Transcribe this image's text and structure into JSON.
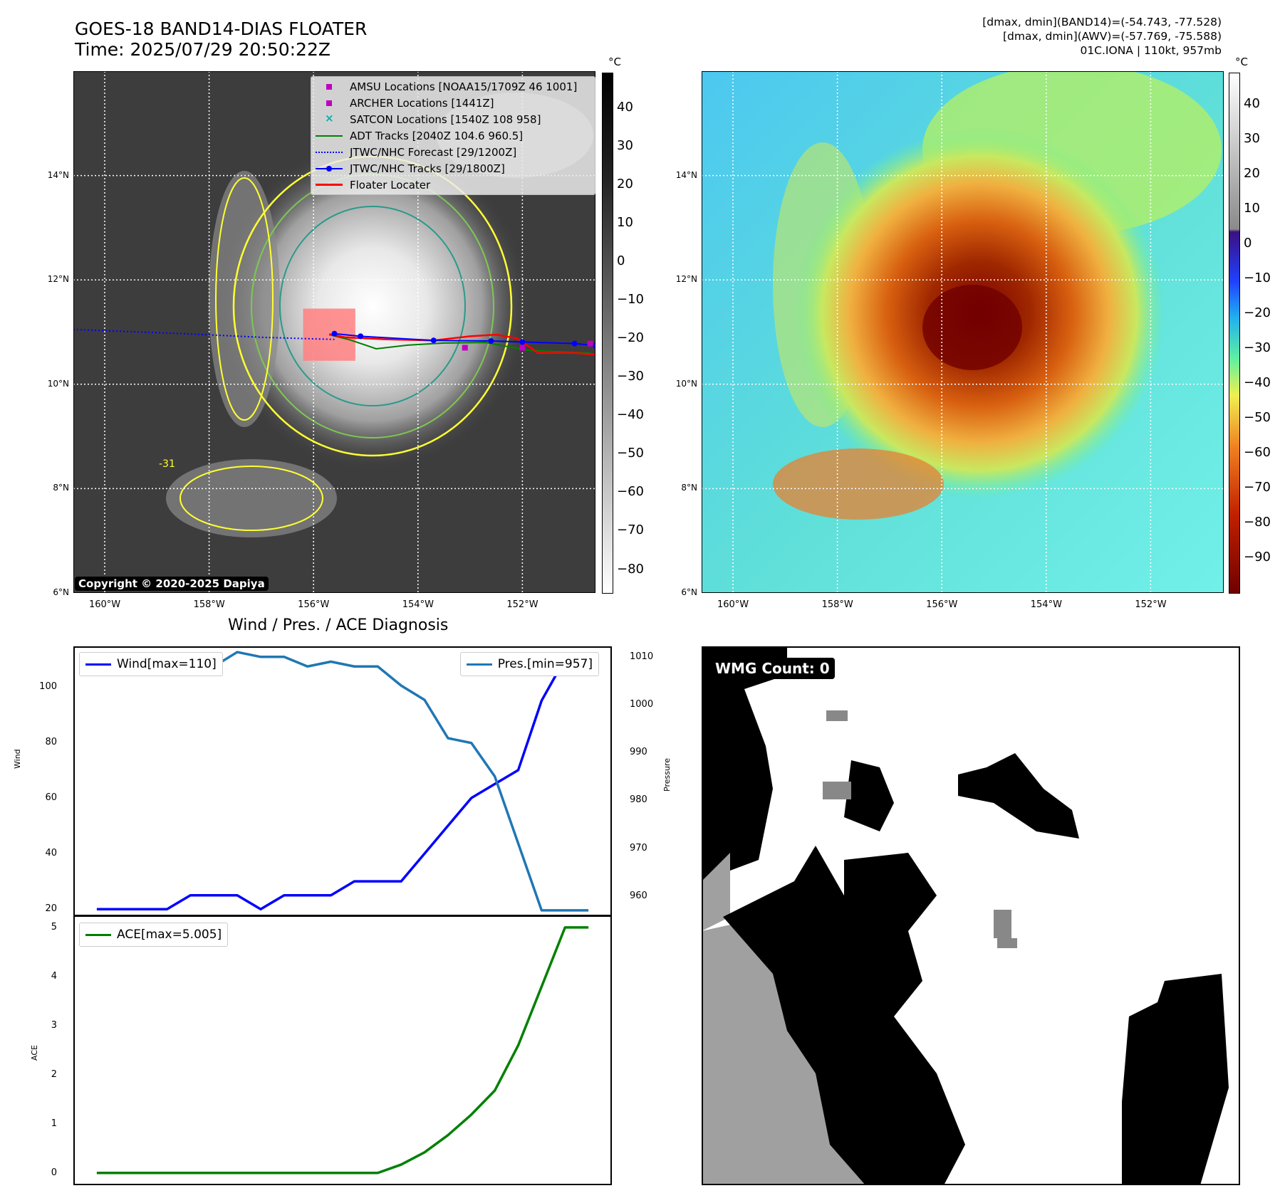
{
  "header": {
    "title_line1": "GOES-18 BAND14-DIAS FLOATER",
    "title_line2": "Time: 2025/07/29 20:50:22Z",
    "info_line1": "[dmax, dmin](BAND14)=(-54.743, -77.528)",
    "info_line2": "[dmax, dmin](AWV)=(-57.769, -75.588)",
    "info_line3": "01C.IONA | 110kt, 957mb"
  },
  "map_axes": {
    "lon_ticks": [
      "160°W",
      "158°W",
      "156°W",
      "154°W",
      "152°W"
    ],
    "lat_ticks": [
      "14°N",
      "12°N",
      "10°N",
      "8°N",
      "6°N"
    ],
    "lon_range": [
      -160.6,
      -150.6
    ],
    "lat_range": [
      6.0,
      16.0
    ]
  },
  "ir_panel": {
    "colorbar_unit": "°C",
    "colorbar_ticks": [
      "40",
      "30",
      "20",
      "10",
      "0",
      "−10",
      "−20",
      "−30",
      "−40",
      "−50",
      "−60",
      "−70",
      "−80"
    ],
    "contour_label": "-31",
    "copyright": "Copyright © 2020-2025 Dapiya",
    "legend": [
      {
        "label": "AMSU Locations [NOAA15/1709Z 46 1001]",
        "marker": "square",
        "color": "#c000c0"
      },
      {
        "label": "ARCHER Locations [1441Z]",
        "marker": "square",
        "color": "#c000c0"
      },
      {
        "label": "SATCON Locations [1540Z 108 958]",
        "marker": "x",
        "color": "#00b0b0"
      },
      {
        "label": "ADT Tracks [2040Z 104.6 960.5]",
        "marker": "line",
        "color": "#008000"
      },
      {
        "label": "JTWC/NHC Forecast [29/1200Z]",
        "marker": "dotted",
        "color": "#0000ff"
      },
      {
        "label": "JTWC/NHC Tracks [29/1800Z]",
        "marker": "line-dot",
        "color": "#0000ff"
      },
      {
        "label": "Floater Locater",
        "marker": "line",
        "color": "#ff0000"
      }
    ],
    "forecast_track": [
      [
        -160.6,
        11.05
      ],
      [
        -158.5,
        10.97
      ],
      [
        -157.0,
        10.9
      ],
      [
        -156.0,
        10.87
      ],
      [
        -155.6,
        10.86
      ]
    ],
    "jtwc_track": [
      [
        -150.6,
        10.74
      ],
      [
        -151.0,
        10.78
      ],
      [
        -152.0,
        10.81
      ],
      [
        -152.6,
        10.83
      ],
      [
        -153.7,
        10.84
      ],
      [
        -155.1,
        10.92
      ],
      [
        -155.6,
        10.97
      ]
    ],
    "adt_track": [
      [
        -150.7,
        10.6
      ],
      [
        -151.2,
        10.62
      ],
      [
        -151.9,
        10.65
      ],
      [
        -152.7,
        10.8
      ],
      [
        -153.5,
        10.79
      ],
      [
        -154.2,
        10.75
      ],
      [
        -154.8,
        10.68
      ],
      [
        -155.3,
        10.85
      ],
      [
        -155.7,
        10.95
      ]
    ],
    "floater_track": [
      [
        -150.6,
        10.57
      ],
      [
        -151.0,
        10.6
      ],
      [
        -151.7,
        10.6
      ],
      [
        -152.1,
        10.88
      ],
      [
        -152.5,
        10.95
      ],
      [
        -153.0,
        10.92
      ],
      [
        -153.7,
        10.84
      ],
      [
        -154.6,
        10.86
      ],
      [
        -155.4,
        10.9
      ],
      [
        -155.7,
        10.96
      ]
    ],
    "amsu_points": [
      [
        -150.7,
        10.78
      ],
      [
        -152.0,
        10.7
      ],
      [
        -153.1,
        10.7
      ]
    ],
    "floater_box": {
      "lon_min": -156.2,
      "lon_max": -155.2,
      "lat_min": 10.45,
      "lat_max": 11.45
    }
  },
  "awv_panel": {
    "colorbar_unit": "°C",
    "colorbar_ticks": [
      "40",
      "30",
      "20",
      "10",
      "0",
      "−10",
      "−20",
      "−30",
      "−40",
      "−50",
      "−60",
      "−70",
      "−80",
      "−90"
    ]
  },
  "wind_pres": {
    "title": "Wind / Pres. / ACE Diagnosis",
    "y_left_label": "Wind",
    "y_right_label": "Pressure",
    "wind_legend": "Wind[max=110]",
    "pres_legend": "Pres.[min=957]",
    "wind_color": "#0000ff",
    "pres_color": "#1f77b4",
    "wind_yticks": [
      "100",
      "80",
      "60",
      "40",
      "20"
    ],
    "pres_yticks": [
      "1010",
      "1000",
      "990",
      "980",
      "970",
      "960"
    ],
    "wind_ylim": [
      17.5,
      114.5
    ],
    "pres_ylim": [
      955.8,
      1012.2
    ]
  },
  "ace_panel": {
    "y_label": "ACE",
    "legend": "ACE[max=5.005]",
    "color": "#008000",
    "yticks": [
      "5",
      "4",
      "3",
      "2",
      "1",
      "0"
    ],
    "ylim": [
      -0.25,
      5.25
    ]
  },
  "wmg_panel": {
    "badge": "WMG Count: 0"
  },
  "chart_data": [
    {
      "type": "line",
      "title": "Wind / Pres. / ACE Diagnosis",
      "x": [
        0,
        1,
        2,
        3,
        4,
        5,
        6,
        7,
        8,
        9,
        10,
        11,
        12,
        13,
        14,
        15,
        16,
        17,
        18,
        19,
        20,
        21
      ],
      "series": [
        {
          "name": "Wind[max=110]",
          "axis": "left",
          "values": [
            20,
            20,
            20,
            20,
            25,
            25,
            25,
            20,
            25,
            25,
            25,
            30,
            30,
            30,
            40,
            50,
            60,
            65,
            70,
            95,
            110,
            110
          ]
        },
        {
          "name": "Pres.[min=957]",
          "axis": "right",
          "values": [
            1010,
            1010,
            1010,
            1009,
            1008,
            1008,
            1011,
            1010,
            1010,
            1008,
            1009,
            1008,
            1008,
            1004,
            1001,
            993,
            992,
            985,
            971,
            957,
            957,
            957
          ]
        }
      ],
      "ylabel": "Wind",
      "y2label": "Pressure",
      "ylim": [
        17.5,
        114.5
      ],
      "y2lim": [
        955.8,
        1012.2
      ]
    },
    {
      "type": "line",
      "x": [
        0,
        1,
        2,
        3,
        4,
        5,
        6,
        7,
        8,
        9,
        10,
        11,
        12,
        13,
        14,
        15,
        16,
        17,
        18,
        19,
        20,
        21
      ],
      "series": [
        {
          "name": "ACE[max=5.005]",
          "values": [
            0,
            0,
            0,
            0,
            0,
            0,
            0,
            0,
            0,
            0,
            0,
            0,
            0,
            0.17,
            0.42,
            0.77,
            1.19,
            1.68,
            2.6,
            3.8,
            5.005,
            5.005
          ]
        }
      ],
      "ylabel": "ACE",
      "ylim": [
        -0.25,
        5.25
      ]
    }
  ]
}
